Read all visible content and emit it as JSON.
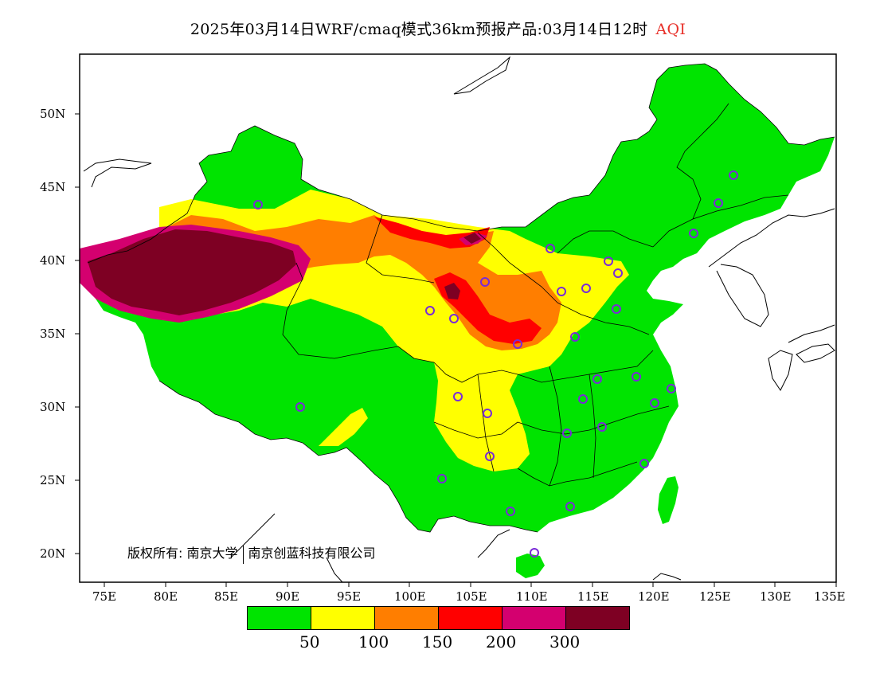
{
  "title": {
    "main": "2025年03月14日WRF/cmaq模式36km预报产品:03月14日12时",
    "variable": "AQI"
  },
  "axes": {
    "lat_ticks": [
      "50N",
      "45N",
      "40N",
      "35N",
      "30N",
      "25N",
      "20N"
    ],
    "lon_ticks": [
      "75E",
      "80E",
      "85E",
      "90E",
      "95E",
      "100E",
      "105E",
      "110E",
      "115E",
      "120E",
      "125E",
      "130E",
      "135E"
    ]
  },
  "copyright": {
    "prefix": "版权所有:",
    "org1": "南京大学",
    "org2": "南京创蓝科技有限公司"
  },
  "legend": {
    "colors": [
      "#00e400",
      "#ffff00",
      "#ff7e00",
      "#ff0000",
      "#d4006f",
      "#7e0023"
    ],
    "ticks": [
      "50",
      "100",
      "150",
      "200",
      "300"
    ]
  },
  "colors": {
    "good": "#00e400",
    "moderate": "#ffff00",
    "usg": "#ff7e00",
    "unhealthy": "#ff0000",
    "very_unhealthy": "#d4006f",
    "hazardous": "#7e0023",
    "station_marker": "#7a2bd8"
  }
}
